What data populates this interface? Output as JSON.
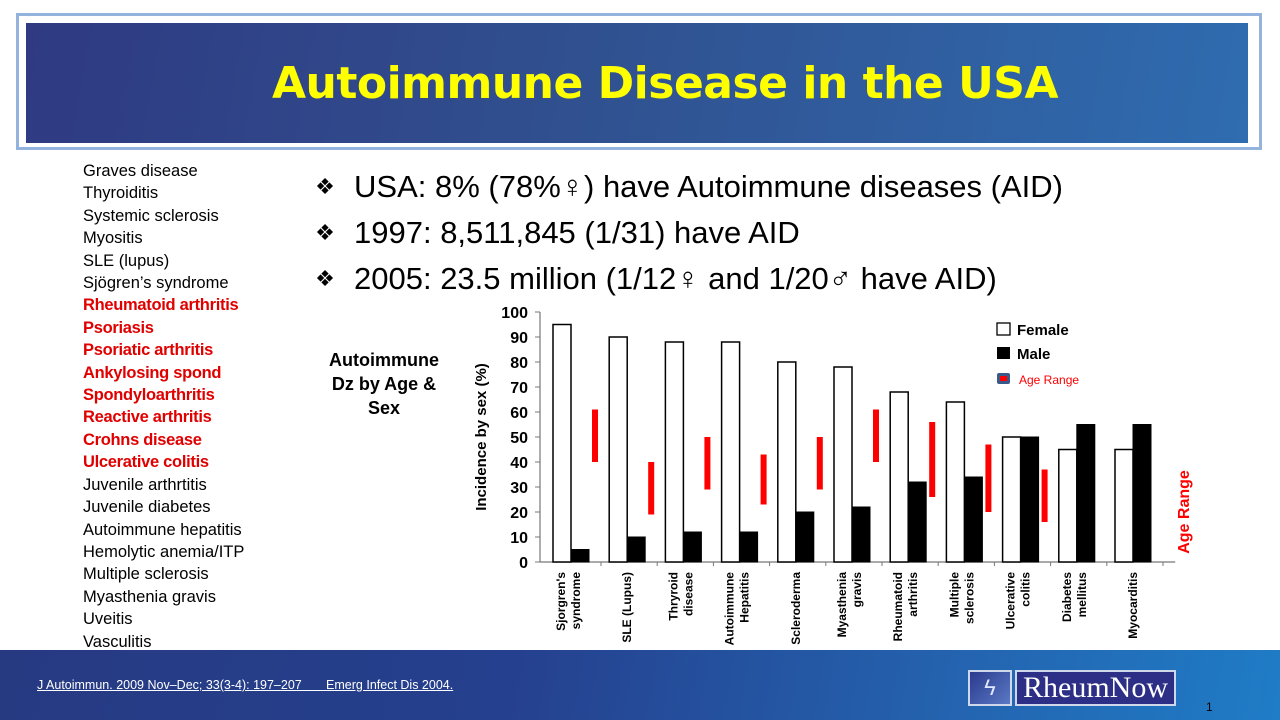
{
  "slide": {
    "title": "Autoimmune Disease in the USA",
    "disease_list": [
      {
        "label": "Graves disease",
        "highlight": false
      },
      {
        "label": "Thyroiditis",
        "highlight": false
      },
      {
        "label": "Systemic sclerosis",
        "highlight": false
      },
      {
        "label": "Myositis",
        "highlight": false
      },
      {
        "label": "SLE (lupus)",
        "highlight": false
      },
      {
        "label": "Sjögren’s syndrome",
        "highlight": false
      },
      {
        "label": "Rheumatoid arthritis",
        "highlight": true
      },
      {
        "label": "Psoriasis",
        "highlight": true
      },
      {
        "label": "Psoriatic arthritis",
        "highlight": true
      },
      {
        "label": "Ankylosing spond",
        "highlight": true
      },
      {
        "label": "Spondyloarthritis",
        "highlight": true
      },
      {
        "label": "Reactive arthritis",
        "highlight": true
      },
      {
        "label": "Crohns disease",
        "highlight": true
      },
      {
        "label": "Ulcerative colitis",
        "highlight": true
      },
      {
        "label": "Juvenile arthrtitis",
        "highlight": false
      },
      {
        "label": "Juvenile diabetes",
        "highlight": false
      },
      {
        "label": "Autoimmune hepatitis",
        "highlight": false
      },
      {
        "label": "Hemolytic anemia/ITP",
        "highlight": false
      },
      {
        "label": "Multiple sclerosis",
        "highlight": false
      },
      {
        "label": "Myasthenia gravis",
        "highlight": false
      },
      {
        "label": "Uveitis",
        "highlight": false
      },
      {
        "label": "Vasculitis",
        "highlight": false
      }
    ],
    "bullets": [
      {
        "icon": "❖",
        "text": "USA: 8% (78%♀) have Autoimmune diseases (AID)"
      },
      {
        "icon": "❖",
        "text": "1997:  8,511,845  (1/31) have AID"
      },
      {
        "icon": "❖",
        "text": "2005:  23.5 million   (1/12♀  and 1/20♂ have AID)"
      }
    ],
    "chart_caption": [
      "Autoimmune",
      "Dz by Age &",
      "Sex"
    ],
    "citation": "J Autoimmun. 2009 Nov–Dec; 33(3-4): 197–207       Emerg Infect Dis 2004.",
    "logo_text": "RheumNow",
    "page_number": "1"
  },
  "colors": {
    "title_text": "#ffff00",
    "highlight_text": "#e00000",
    "age_range": "#ff0000",
    "female_fill": "#ffffff",
    "male_fill": "#000000"
  },
  "chart_data": {
    "type": "bar",
    "title": "Autoimmune Dz by Age & Sex",
    "xlabel": "",
    "ylabel": "Incidence by sex (%)",
    "right_label": "Age Range",
    "ylim": [
      0,
      100
    ],
    "yticks": [
      0,
      10,
      20,
      30,
      40,
      50,
      60,
      70,
      80,
      90,
      100
    ],
    "grid": false,
    "legend_position": "top-right",
    "legend": [
      "Female",
      "Male",
      "Age Range"
    ],
    "categories": [
      "Sjorgren's syndrome",
      "SLE (Lupus)",
      "Thryroid disease",
      "Autoimmune Hepatitis",
      "Scleroderma",
      "Myasthenia gravis",
      "Rheumatoid arthritis",
      "Multiple sclerosis",
      "Ulcerative colitis",
      "Diabetes mellitus",
      "Myocarditis"
    ],
    "series": [
      {
        "name": "Female",
        "values": [
          95,
          90,
          88,
          88,
          80,
          78,
          68,
          64,
          50,
          45,
          45
        ]
      },
      {
        "name": "Male",
        "values": [
          5,
          10,
          12,
          12,
          20,
          22,
          32,
          34,
          50,
          55,
          55
        ]
      }
    ],
    "age_range": [
      {
        "category": "Sjorgren's syndrome",
        "low": 40,
        "high": 61
      },
      {
        "category": "SLE (Lupus)",
        "low": 19,
        "high": 40
      },
      {
        "category": "Thryroid disease",
        "low": 29,
        "high": 50
      },
      {
        "category": "Autoimmune Hepatitis",
        "low": 23,
        "high": 43
      },
      {
        "category": "Scleroderma",
        "low": 29,
        "high": 50
      },
      {
        "category": "Myasthenia gravis",
        "low": 40,
        "high": 61
      },
      {
        "category": "Rheumatoid arthritis",
        "low": 26,
        "high": 56
      },
      {
        "category": "Multiple sclerosis",
        "low": 20,
        "high": 47
      },
      {
        "category": "Ulcerative colitis",
        "low": 16,
        "high": 37
      },
      {
        "category": "Diabetes mellitus",
        "low": null,
        "high": null
      },
      {
        "category": "Myocarditis",
        "low": null,
        "high": null
      }
    ]
  }
}
